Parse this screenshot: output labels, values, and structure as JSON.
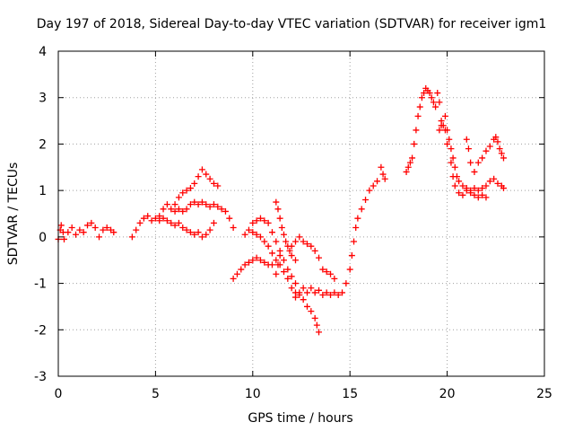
{
  "chart_data": {
    "type": "scatter",
    "title": "Day 197 of 2018, Sidereal Day-to-day VTEC variation (SDTVAR) for receiver igm1",
    "xlabel": "GPS time / hours",
    "ylabel": "SDTVAR / TECUs",
    "xlim": [
      0,
      25
    ],
    "ylim": [
      -3,
      4
    ],
    "xticks": [
      "0",
      "5",
      "10",
      "15",
      "20",
      "25"
    ],
    "yticks": [
      "-3",
      "-2",
      "-1",
      "0",
      "1",
      "2",
      "3",
      "4"
    ],
    "grid": true,
    "marker": "+",
    "color": "#ff0000",
    "series": [
      {
        "points": [
          [
            0.0,
            -0.05
          ],
          [
            0.1,
            0.15
          ],
          [
            0.15,
            0.25
          ],
          [
            0.25,
            0.1
          ],
          [
            0.3,
            -0.05
          ],
          [
            0.5,
            0.1
          ],
          [
            0.7,
            0.2
          ],
          [
            0.9,
            0.05
          ],
          [
            1.1,
            0.15
          ],
          [
            1.3,
            0.1
          ],
          [
            1.5,
            0.25
          ],
          [
            1.7,
            0.3
          ],
          [
            1.9,
            0.2
          ],
          [
            2.1,
            0.0
          ],
          [
            2.3,
            0.15
          ],
          [
            2.5,
            0.2
          ],
          [
            2.7,
            0.15
          ],
          [
            2.85,
            0.1
          ],
          [
            3.8,
            0.0
          ],
          [
            4.0,
            0.15
          ],
          [
            4.2,
            0.3
          ],
          [
            4.4,
            0.4
          ],
          [
            4.6,
            0.45
          ],
          [
            4.8,
            0.35
          ],
          [
            5.0,
            0.4
          ],
          [
            5.2,
            0.35
          ],
          [
            5.4,
            0.4
          ],
          [
            5.6,
            0.35
          ],
          [
            5.8,
            0.3
          ],
          [
            6.0,
            0.25
          ],
          [
            6.2,
            0.3
          ],
          [
            6.4,
            0.2
          ],
          [
            6.6,
            0.15
          ],
          [
            6.8,
            0.1
          ],
          [
            7.0,
            0.05
          ],
          [
            7.2,
            0.1
          ],
          [
            7.4,
            0.0
          ],
          [
            7.6,
            0.05
          ],
          [
            7.8,
            0.15
          ],
          [
            8.0,
            0.3
          ],
          [
            5.2,
            0.45
          ],
          [
            5.4,
            0.6
          ],
          [
            5.6,
            0.7
          ],
          [
            5.8,
            0.6
          ],
          [
            6.0,
            0.55
          ],
          [
            6.2,
            0.6
          ],
          [
            6.4,
            0.55
          ],
          [
            6.6,
            0.6
          ],
          [
            6.8,
            0.7
          ],
          [
            7.0,
            0.75
          ],
          [
            7.2,
            0.7
          ],
          [
            7.4,
            0.75
          ],
          [
            7.6,
            0.7
          ],
          [
            7.8,
            0.65
          ],
          [
            8.0,
            0.7
          ],
          [
            8.2,
            0.65
          ],
          [
            8.4,
            0.6
          ],
          [
            8.6,
            0.55
          ],
          [
            8.8,
            0.4
          ],
          [
            9.0,
            0.2
          ],
          [
            6.0,
            0.7
          ],
          [
            6.2,
            0.85
          ],
          [
            6.4,
            0.95
          ],
          [
            6.6,
            1.0
          ],
          [
            6.8,
            1.05
          ],
          [
            7.0,
            1.15
          ],
          [
            7.2,
            1.3
          ],
          [
            7.4,
            1.45
          ],
          [
            7.6,
            1.35
          ],
          [
            7.8,
            1.25
          ],
          [
            8.0,
            1.15
          ],
          [
            8.2,
            1.1
          ],
          [
            9.0,
            -0.9
          ],
          [
            9.2,
            -0.8
          ],
          [
            9.4,
            -0.7
          ],
          [
            9.6,
            -0.6
          ],
          [
            9.8,
            -0.55
          ],
          [
            10.0,
            -0.5
          ],
          [
            10.2,
            -0.45
          ],
          [
            10.4,
            -0.5
          ],
          [
            10.6,
            -0.55
          ],
          [
            10.8,
            -0.6
          ],
          [
            11.0,
            -0.6
          ],
          [
            9.6,
            0.05
          ],
          [
            9.8,
            0.15
          ],
          [
            10.0,
            0.1
          ],
          [
            10.2,
            0.05
          ],
          [
            10.4,
            0.0
          ],
          [
            10.6,
            -0.1
          ],
          [
            10.8,
            -0.2
          ],
          [
            11.0,
            -0.35
          ],
          [
            11.2,
            -0.5
          ],
          [
            11.4,
            -0.6
          ],
          [
            11.6,
            -0.75
          ],
          [
            11.8,
            -0.9
          ],
          [
            12.0,
            -1.1
          ],
          [
            12.2,
            -1.3
          ],
          [
            10.0,
            0.3
          ],
          [
            10.2,
            0.35
          ],
          [
            10.4,
            0.4
          ],
          [
            10.6,
            0.35
          ],
          [
            10.8,
            0.3
          ],
          [
            11.0,
            0.1
          ],
          [
            11.2,
            -0.1
          ],
          [
            11.4,
            -0.3
          ],
          [
            11.6,
            -0.5
          ],
          [
            11.8,
            -0.7
          ],
          [
            12.0,
            -0.85
          ],
          [
            12.2,
            -1.0
          ],
          [
            12.4,
            -1.2
          ],
          [
            12.6,
            -1.35
          ],
          [
            12.8,
            -1.5
          ],
          [
            13.0,
            -1.6
          ],
          [
            13.2,
            -1.75
          ],
          [
            13.3,
            -1.9
          ],
          [
            13.4,
            -2.05
          ],
          [
            11.2,
            0.75
          ],
          [
            11.3,
            0.6
          ],
          [
            11.4,
            0.4
          ],
          [
            11.5,
            0.2
          ],
          [
            11.6,
            0.05
          ],
          [
            11.7,
            -0.1
          ],
          [
            11.8,
            -0.2
          ],
          [
            11.9,
            -0.3
          ],
          [
            12.0,
            -0.4
          ],
          [
            12.2,
            -0.5
          ],
          [
            11.2,
            -0.8
          ],
          [
            11.3,
            -0.6
          ],
          [
            11.4,
            -0.4
          ],
          [
            12.0,
            -0.2
          ],
          [
            12.2,
            -0.1
          ],
          [
            12.4,
            0.0
          ],
          [
            12.6,
            -0.1
          ],
          [
            12.8,
            -0.15
          ],
          [
            13.0,
            -0.2
          ],
          [
            13.2,
            -0.3
          ],
          [
            13.4,
            -0.45
          ],
          [
            13.6,
            -0.7
          ],
          [
            13.8,
            -0.75
          ],
          [
            14.0,
            -0.8
          ],
          [
            14.2,
            -0.9
          ],
          [
            12.2,
            -1.2
          ],
          [
            12.4,
            -1.25
          ],
          [
            12.6,
            -1.1
          ],
          [
            12.8,
            -1.2
          ],
          [
            13.0,
            -1.1
          ],
          [
            13.2,
            -1.2
          ],
          [
            13.4,
            -1.15
          ],
          [
            13.6,
            -1.25
          ],
          [
            13.8,
            -1.2
          ],
          [
            14.0,
            -1.25
          ],
          [
            14.2,
            -1.2
          ],
          [
            14.4,
            -1.25
          ],
          [
            14.6,
            -1.2
          ],
          [
            14.8,
            -1.0
          ],
          [
            15.0,
            -0.7
          ],
          [
            15.1,
            -0.4
          ],
          [
            15.2,
            -0.1
          ],
          [
            15.3,
            0.2
          ],
          [
            15.4,
            0.4
          ],
          [
            15.6,
            0.6
          ],
          [
            15.8,
            0.8
          ],
          [
            16.0,
            1.0
          ],
          [
            16.2,
            1.1
          ],
          [
            16.4,
            1.2
          ],
          [
            16.6,
            1.5
          ],
          [
            16.7,
            1.35
          ],
          [
            16.8,
            1.25
          ],
          [
            17.9,
            1.4
          ],
          [
            18.0,
            1.5
          ],
          [
            18.1,
            1.6
          ],
          [
            18.2,
            1.7
          ],
          [
            18.3,
            2.0
          ],
          [
            18.4,
            2.3
          ],
          [
            18.5,
            2.6
          ],
          [
            18.6,
            2.8
          ],
          [
            18.7,
            3.0
          ],
          [
            18.8,
            3.1
          ],
          [
            18.9,
            3.2
          ],
          [
            19.0,
            3.15
          ],
          [
            19.1,
            3.1
          ],
          [
            19.2,
            3.0
          ],
          [
            19.3,
            2.9
          ],
          [
            19.4,
            2.8
          ],
          [
            19.5,
            3.1
          ],
          [
            19.6,
            2.9
          ],
          [
            19.7,
            2.5
          ],
          [
            19.8,
            2.4
          ],
          [
            19.9,
            2.6
          ],
          [
            20.0,
            2.3
          ],
          [
            20.1,
            2.1
          ],
          [
            20.2,
            1.9
          ],
          [
            20.3,
            1.7
          ],
          [
            20.4,
            1.5
          ],
          [
            20.5,
            1.3
          ],
          [
            20.6,
            1.2
          ],
          [
            20.8,
            1.1
          ],
          [
            21.0,
            1.0
          ],
          [
            21.2,
            0.95
          ],
          [
            21.4,
            0.9
          ],
          [
            21.6,
            0.85
          ],
          [
            21.8,
            0.9
          ],
          [
            22.0,
            0.85
          ],
          [
            19.6,
            2.3
          ],
          [
            19.7,
            2.4
          ],
          [
            19.9,
            2.3
          ],
          [
            20.0,
            2.0
          ],
          [
            20.2,
            1.6
          ],
          [
            20.3,
            1.3
          ],
          [
            20.4,
            1.1
          ],
          [
            20.6,
            0.95
          ],
          [
            20.8,
            0.9
          ],
          [
            21.0,
            2.1
          ],
          [
            21.1,
            1.9
          ],
          [
            21.2,
            1.6
          ],
          [
            21.4,
            1.4
          ],
          [
            21.6,
            1.6
          ],
          [
            21.8,
            1.7
          ],
          [
            22.0,
            1.85
          ],
          [
            22.2,
            1.95
          ],
          [
            22.4,
            2.1
          ],
          [
            22.5,
            2.15
          ],
          [
            22.6,
            2.05
          ],
          [
            22.7,
            1.9
          ],
          [
            22.8,
            1.8
          ],
          [
            22.9,
            1.7
          ],
          [
            21.0,
            1.05
          ],
          [
            21.2,
            1.0
          ],
          [
            21.4,
            1.05
          ],
          [
            21.6,
            1.0
          ],
          [
            21.8,
            1.05
          ],
          [
            22.0,
            1.1
          ],
          [
            22.2,
            1.2
          ],
          [
            22.4,
            1.25
          ],
          [
            22.6,
            1.15
          ],
          [
            22.8,
            1.1
          ],
          [
            22.9,
            1.05
          ]
        ]
      }
    ]
  }
}
